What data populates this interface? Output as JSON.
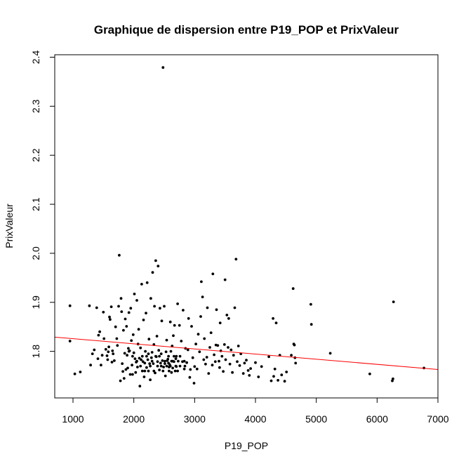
{
  "chart_data": {
    "type": "scatter",
    "title": "Graphique de dispersion entre P19_POP et PrixValeur",
    "xlabel": "P19_POP",
    "ylabel": "PrixValeur",
    "xlim": [
      700,
      7000
    ],
    "ylim": [
      1.705,
      2.405
    ],
    "xticks": [
      {
        "value": 1000,
        "label": "1000"
      },
      {
        "value": 2000,
        "label": "2000"
      },
      {
        "value": 3000,
        "label": "3000"
      },
      {
        "value": 4000,
        "label": "4000"
      },
      {
        "value": 5000,
        "label": "5000"
      },
      {
        "value": 6000,
        "label": "6000"
      },
      {
        "value": 7000,
        "label": "7000"
      }
    ],
    "yticks": [
      {
        "value": 1.8,
        "label": "1.8"
      },
      {
        "value": 1.9,
        "label": "1.9"
      },
      {
        "value": 2.0,
        "label": "2.0"
      },
      {
        "value": 2.1,
        "label": "2.1"
      },
      {
        "value": 2.2,
        "label": "2.2"
      },
      {
        "value": 2.3,
        "label": "2.3"
      },
      {
        "value": 2.4,
        "label": "2.4"
      }
    ],
    "grid": false,
    "legend": "none",
    "point_color": "#000000",
    "line_color": "#ff0000",
    "regression_line": {
      "x": [
        700,
        7000
      ],
      "y": [
        1.829,
        1.763
      ]
    },
    "points": [
      [
        950,
        1.893
      ],
      [
        950,
        1.821
      ],
      [
        1030,
        1.754
      ],
      [
        1120,
        1.758
      ],
      [
        1270,
        1.893
      ],
      [
        1290,
        1.772
      ],
      [
        1320,
        1.795
      ],
      [
        1350,
        1.803
      ],
      [
        1390,
        1.889
      ],
      [
        1410,
        1.785
      ],
      [
        1420,
        1.833
      ],
      [
        1440,
        1.84
      ],
      [
        1460,
        1.772
      ],
      [
        1480,
        1.792
      ],
      [
        1500,
        1.88
      ],
      [
        1510,
        1.826
      ],
      [
        1540,
        1.804
      ],
      [
        1560,
        1.791
      ],
      [
        1570,
        1.783
      ],
      [
        1580,
        1.799
      ],
      [
        1590,
        1.809
      ],
      [
        1600,
        1.87
      ],
      [
        1610,
        1.865
      ],
      [
        1630,
        1.891
      ],
      [
        1640,
        1.778
      ],
      [
        1650,
        1.801
      ],
      [
        1660,
        1.795
      ],
      [
        1680,
        1.781
      ],
      [
        1700,
        1.85
      ],
      [
        1720,
        1.826
      ],
      [
        1730,
        1.812
      ],
      [
        1750,
        1.892
      ],
      [
        1760,
        1.996
      ],
      [
        1780,
        1.74
      ],
      [
        1790,
        1.908
      ],
      [
        1800,
        1.881
      ],
      [
        1810,
        1.775
      ],
      [
        1820,
        1.759
      ],
      [
        1830,
        1.843
      ],
      [
        1840,
        1.745
      ],
      [
        1850,
        1.796
      ],
      [
        1860,
        1.866
      ],
      [
        1870,
        1.763
      ],
      [
        1880,
        1.851
      ],
      [
        1890,
        1.792
      ],
      [
        1900,
        1.766
      ],
      [
        1910,
        1.806
      ],
      [
        1920,
        1.879
      ],
      [
        1930,
        1.801
      ],
      [
        1940,
        1.753
      ],
      [
        1950,
        1.888
      ],
      [
        1960,
        1.822
      ],
      [
        1970,
        1.772
      ],
      [
        1980,
        1.753
      ],
      [
        1990,
        1.834
      ],
      [
        2000,
        1.797
      ],
      [
        2010,
        1.917
      ],
      [
        2020,
        1.785
      ],
      [
        2030,
        1.757
      ],
      [
        2040,
        1.778
      ],
      [
        2050,
        1.904
      ],
      [
        2060,
        1.768
      ],
      [
        2070,
        1.815
      ],
      [
        2080,
        1.845
      ],
      [
        2090,
        1.786
      ],
      [
        2100,
        1.729
      ],
      [
        2110,
        1.807
      ],
      [
        2120,
        1.783
      ],
      [
        2130,
        1.937
      ],
      [
        2140,
        1.79
      ],
      [
        2150,
        1.779
      ],
      [
        2160,
        1.864
      ],
      [
        2170,
        1.748
      ],
      [
        2180,
        1.776
      ],
      [
        2190,
        1.8
      ],
      [
        2200,
        1.878
      ],
      [
        2210,
        1.767
      ],
      [
        2220,
        1.94
      ],
      [
        2230,
        1.783
      ],
      [
        2240,
        1.795
      ],
      [
        2250,
        1.825
      ],
      [
        2260,
        1.775
      ],
      [
        2270,
        1.742
      ],
      [
        2280,
        1.908
      ],
      [
        2290,
        1.787
      ],
      [
        2300,
        1.798
      ],
      [
        2310,
        1.961
      ],
      [
        2320,
        1.775
      ],
      [
        2330,
        1.814
      ],
      [
        2340,
        1.892
      ],
      [
        2350,
        1.756
      ],
      [
        2360,
        1.985
      ],
      [
        2370,
        1.789
      ],
      [
        2380,
        1.831
      ],
      [
        2390,
        1.779
      ],
      [
        2400,
        1.974
      ],
      [
        2410,
        1.802
      ],
      [
        2420,
        1.762
      ],
      [
        2430,
        1.888
      ],
      [
        2440,
        1.776
      ],
      [
        2450,
        1.795
      ],
      [
        2460,
        1.862
      ],
      [
        2470,
        1.781
      ],
      [
        2480,
        2.379
      ],
      [
        2490,
        1.768
      ],
      [
        2500,
        1.892
      ],
      [
        2510,
        1.775
      ],
      [
        2520,
        1.75
      ],
      [
        2530,
        1.799
      ],
      [
        2540,
        1.823
      ],
      [
        2550,
        1.781
      ],
      [
        2560,
        1.784
      ],
      [
        2570,
        1.776
      ],
      [
        2580,
        1.768
      ],
      [
        2590,
        1.773
      ],
      [
        2600,
        1.86
      ],
      [
        2610,
        1.8
      ],
      [
        2620,
        1.757
      ],
      [
        2630,
        1.811
      ],
      [
        2640,
        1.766
      ],
      [
        2650,
        1.832
      ],
      [
        2660,
        1.779
      ],
      [
        2670,
        1.853
      ],
      [
        2680,
        1.76
      ],
      [
        2690,
        1.785
      ],
      [
        2700,
        1.769
      ],
      [
        2720,
        1.897
      ],
      [
        2730,
        1.78
      ],
      [
        2750,
        1.853
      ],
      [
        2760,
        1.77
      ],
      [
        2780,
        1.821
      ],
      [
        2800,
        1.779
      ],
      [
        2810,
        1.884
      ],
      [
        2830,
        1.764
      ],
      [
        2850,
        1.806
      ],
      [
        2870,
        1.777
      ],
      [
        2890,
        1.803
      ],
      [
        2900,
        1.867
      ],
      [
        2920,
        1.747
      ],
      [
        2930,
        1.763
      ],
      [
        2950,
        1.851
      ],
      [
        2970,
        1.787
      ],
      [
        2990,
        1.735
      ],
      [
        3000,
        1.769
      ],
      [
        3020,
        1.815
      ],
      [
        3040,
        1.764
      ],
      [
        3060,
        1.835
      ],
      [
        3080,
        1.799
      ],
      [
        3100,
        1.871
      ],
      [
        3110,
        1.942
      ],
      [
        3130,
        1.911
      ],
      [
        3150,
        1.783
      ],
      [
        3160,
        1.826
      ],
      [
        3180,
        1.774
      ],
      [
        3200,
        1.788
      ],
      [
        3210,
        1.889
      ],
      [
        3230,
        1.755
      ],
      [
        3250,
        1.808
      ],
      [
        3270,
        1.838
      ],
      [
        3290,
        1.772
      ],
      [
        3300,
        1.958
      ],
      [
        3320,
        1.793
      ],
      [
        3340,
        1.779
      ],
      [
        3350,
        1.813
      ],
      [
        3360,
        1.885
      ],
      [
        3380,
        1.812
      ],
      [
        3400,
        1.78
      ],
      [
        3410,
        1.767
      ],
      [
        3420,
        1.858
      ],
      [
        3430,
        1.801
      ],
      [
        3450,
        1.79
      ],
      [
        3470,
        1.759
      ],
      [
        3490,
        1.814
      ],
      [
        3500,
        1.946
      ],
      [
        3510,
        1.783
      ],
      [
        3530,
        1.874
      ],
      [
        3550,
        1.808
      ],
      [
        3560,
        1.867
      ],
      [
        3580,
        1.774
      ],
      [
        3600,
        1.803
      ],
      [
        3620,
        1.757
      ],
      [
        3640,
        1.792
      ],
      [
        3660,
        1.889
      ],
      [
        3680,
        1.988
      ],
      [
        3700,
        1.779
      ],
      [
        3720,
        1.811
      ],
      [
        3740,
        1.771
      ],
      [
        3760,
        1.795
      ],
      [
        3800,
        1.755
      ],
      [
        3820,
        1.776
      ],
      [
        3850,
        1.782
      ],
      [
        3880,
        1.761
      ],
      [
        3900,
        1.751
      ],
      [
        3920,
        1.765
      ],
      [
        4000,
        1.777
      ],
      [
        4050,
        1.748
      ],
      [
        4100,
        1.769
      ],
      [
        4220,
        1.789
      ],
      [
        4260,
        1.74
      ],
      [
        4290,
        1.867
      ],
      [
        4300,
        1.749
      ],
      [
        4320,
        1.764
      ],
      [
        4340,
        1.858
      ],
      [
        4370,
        1.741
      ],
      [
        4400,
        1.792
      ],
      [
        4430,
        1.752
      ],
      [
        4480,
        1.739
      ],
      [
        4510,
        1.758
      ],
      [
        4590,
        1.792
      ],
      [
        4620,
        1.928
      ],
      [
        4630,
        1.815
      ],
      [
        4640,
        1.813
      ],
      [
        4650,
        1.787
      ],
      [
        4660,
        1.776
      ],
      [
        4910,
        1.896
      ],
      [
        4920,
        1.855
      ],
      [
        5230,
        1.796
      ],
      [
        5880,
        1.754
      ],
      [
        6250,
        1.74
      ],
      [
        6260,
        1.744
      ],
      [
        6270,
        1.901
      ],
      [
        6770,
        1.766
      ],
      [
        2210,
        1.79
      ],
      [
        2270,
        1.77
      ],
      [
        2330,
        1.76
      ],
      [
        2450,
        1.77
      ],
      [
        2570,
        1.79
      ],
      [
        2620,
        1.78
      ],
      [
        2690,
        1.77
      ],
      [
        2180,
        1.76
      ],
      [
        2050,
        1.78
      ],
      [
        1980,
        1.79
      ],
      [
        1920,
        1.8
      ],
      [
        2110,
        1.77
      ],
      [
        2360,
        1.79
      ],
      [
        2480,
        1.76
      ],
      [
        2540,
        1.77
      ],
      [
        2580,
        1.76
      ],
      [
        2660,
        1.79
      ],
      [
        2720,
        1.76
      ],
      [
        2760,
        1.79
      ],
      [
        2830,
        1.78
      ],
      [
        2140,
        1.76
      ],
      [
        2240,
        1.76
      ],
      [
        2300,
        1.78
      ],
      [
        2390,
        1.77
      ],
      [
        2420,
        1.79
      ],
      [
        2510,
        1.78
      ],
      [
        2600,
        1.77
      ],
      [
        2640,
        1.78
      ],
      [
        2700,
        1.79
      ],
      [
        2840,
        1.77
      ]
    ]
  }
}
